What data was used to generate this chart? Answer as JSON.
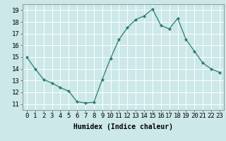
{
  "x": [
    0,
    1,
    2,
    3,
    4,
    5,
    6,
    7,
    8,
    9,
    10,
    11,
    12,
    13,
    14,
    15,
    16,
    17,
    18,
    19,
    20,
    21,
    22,
    23
  ],
  "y": [
    15.0,
    14.0,
    13.1,
    12.8,
    12.4,
    12.1,
    11.2,
    11.1,
    11.15,
    13.1,
    14.9,
    16.5,
    17.5,
    18.2,
    18.5,
    19.1,
    17.7,
    17.4,
    18.3,
    16.5,
    15.5,
    14.5,
    14.0,
    13.7
  ],
  "line_color": "#2d7d6e",
  "marker": "D",
  "marker_size": 2,
  "bg_color": "#cce8e8",
  "grid_color": "#ffffff",
  "xlabel": "Humidex (Indice chaleur)",
  "xlim": [
    -0.5,
    23.5
  ],
  "ylim": [
    10.5,
    19.5
  ],
  "yticks": [
    11,
    12,
    13,
    14,
    15,
    16,
    17,
    18,
    19
  ],
  "xticks": [
    0,
    1,
    2,
    3,
    4,
    5,
    6,
    7,
    8,
    9,
    10,
    11,
    12,
    13,
    14,
    15,
    16,
    17,
    18,
    19,
    20,
    21,
    22,
    23
  ],
  "label_fontsize": 7,
  "tick_fontsize": 6.5
}
